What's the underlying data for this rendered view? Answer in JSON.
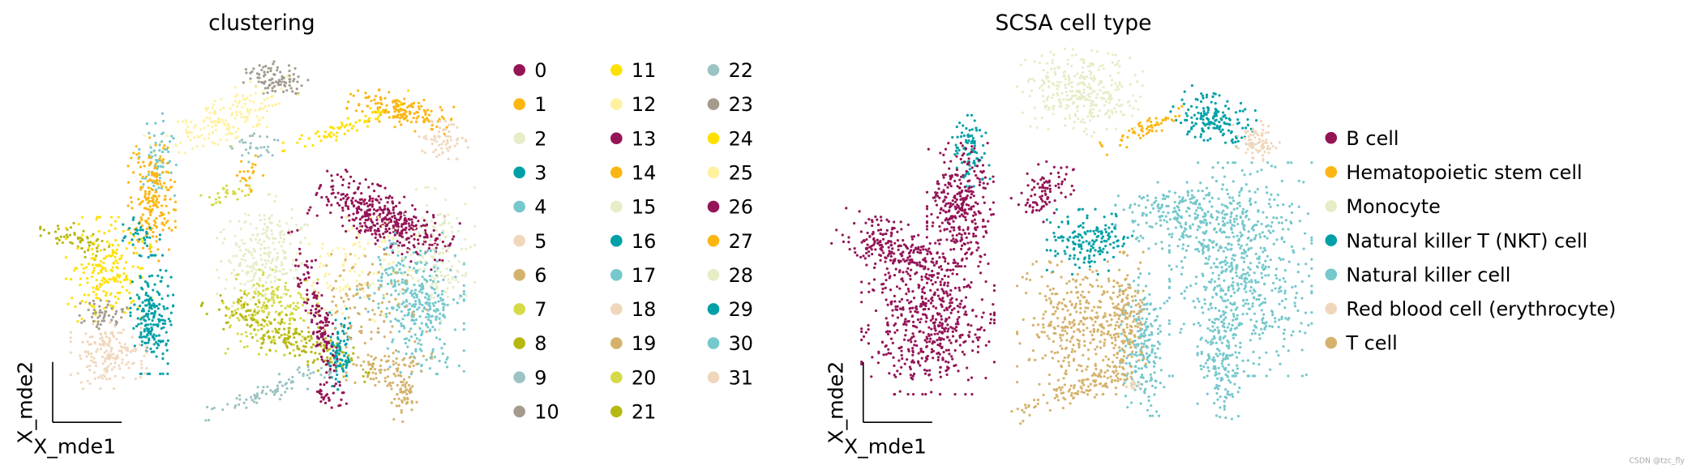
{
  "chart_data": [
    {
      "type": "scatter",
      "title": "clustering",
      "xlabel": "X_mde1",
      "ylabel": "X_mde2",
      "grid": false,
      "legend_placement": "right",
      "legend": [
        "0",
        "1",
        "2",
        "3",
        "4",
        "5",
        "6",
        "7",
        "8",
        "9",
        "10",
        "11",
        "12",
        "13",
        "14",
        "15",
        "16",
        "17",
        "18",
        "19",
        "20",
        "21",
        "22",
        "23",
        "24",
        "25",
        "26",
        "27",
        "28",
        "29",
        "30",
        "31"
      ],
      "colors": [
        "#941456",
        "#FCB614",
        "#E6EDC7",
        "#01A0A7",
        "#75C8CC",
        "#F0D7BC",
        "#D5B26C",
        "#D5DA48",
        "#B6B812",
        "#9CC3C3",
        "#A39C8E",
        "#FFE100",
        "#FFF1A0",
        "#941456",
        "#FCB614",
        "#E6EDC7",
        "#01A0A7",
        "#75C8CC",
        "#F0D7BC",
        "#D5B26C",
        "#D5DA48",
        "#B6B812",
        "#9CC3C3",
        "#A39C8E",
        "#FFE100",
        "#FFF1A0",
        "#941456",
        "#FCB614",
        "#E6EDC7",
        "#01A0A7",
        "#75C8CC",
        "#F0D7BC"
      ]
    },
    {
      "type": "scatter",
      "title": "SCSA cell type",
      "xlabel": "X_mde1",
      "ylabel": "X_mde2",
      "grid": false,
      "legend_placement": "right",
      "legend": [
        "B cell",
        "Hematopoietic stem cell",
        "Monocyte",
        "Natural killer T (NKT) cell",
        "Natural killer cell",
        "Red blood cell (erythrocyte)",
        "T cell"
      ],
      "colors": [
        "#941456",
        "#FCB614",
        "#E6EDC7",
        "#01A0A7",
        "#75C8CC",
        "#F0D7BC",
        "#D5B26C"
      ]
    }
  ],
  "watermark": "CSDN @tzc_fly"
}
